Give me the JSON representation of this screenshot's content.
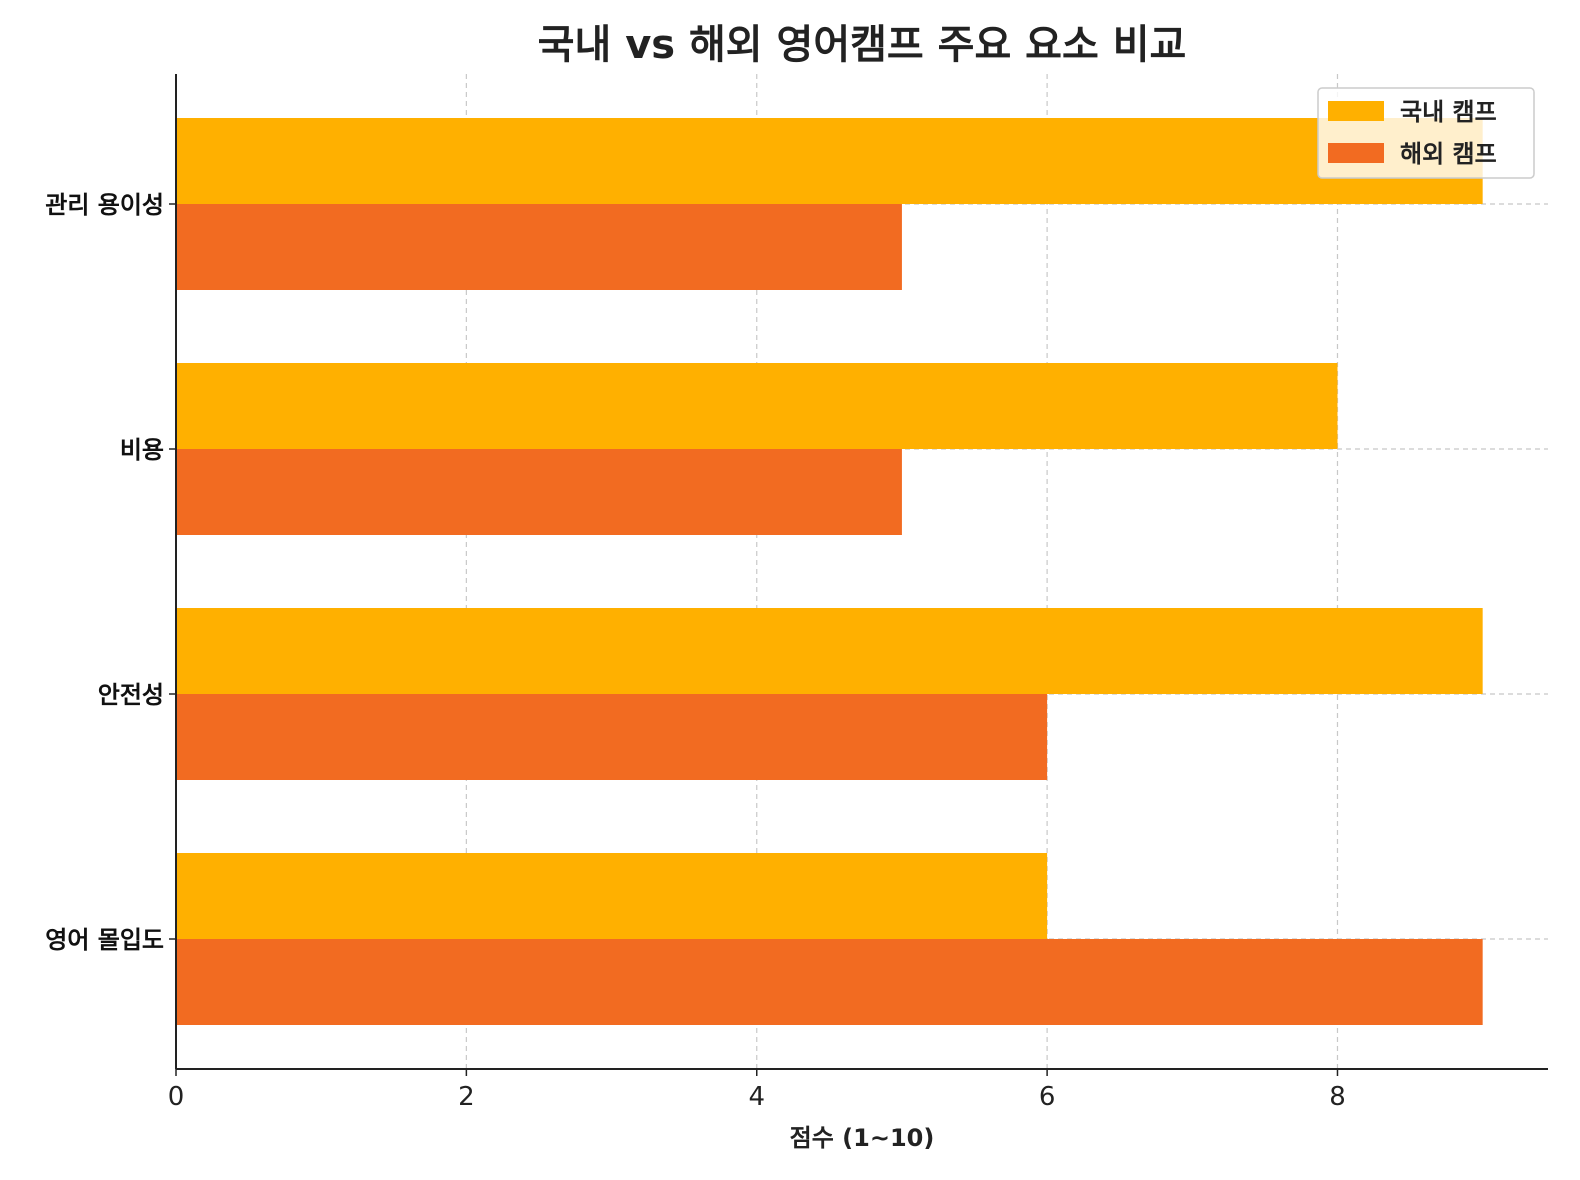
{
  "chart_data": {
    "type": "bar",
    "orientation": "horizontal",
    "title": "국내 vs 해외 영어캠프 주요 요소 비교",
    "xlabel": "점수 (1~10)",
    "ylabel": "",
    "categories": [
      "관리 용이성",
      "비용",
      "안전성",
      "영어 몰입도"
    ],
    "series": [
      {
        "name": "국내 캠프",
        "color": "#FFB000",
        "values": [
          9,
          8,
          9,
          6
        ]
      },
      {
        "name": "해외 캠프",
        "color": "#F26B21",
        "values": [
          5,
          5,
          6,
          9
        ]
      }
    ],
    "xlim": [
      0,
      9.45
    ],
    "xticks": [
      "0",
      "2",
      "4",
      "6",
      "8"
    ],
    "grid": true,
    "legend": "top-right"
  }
}
